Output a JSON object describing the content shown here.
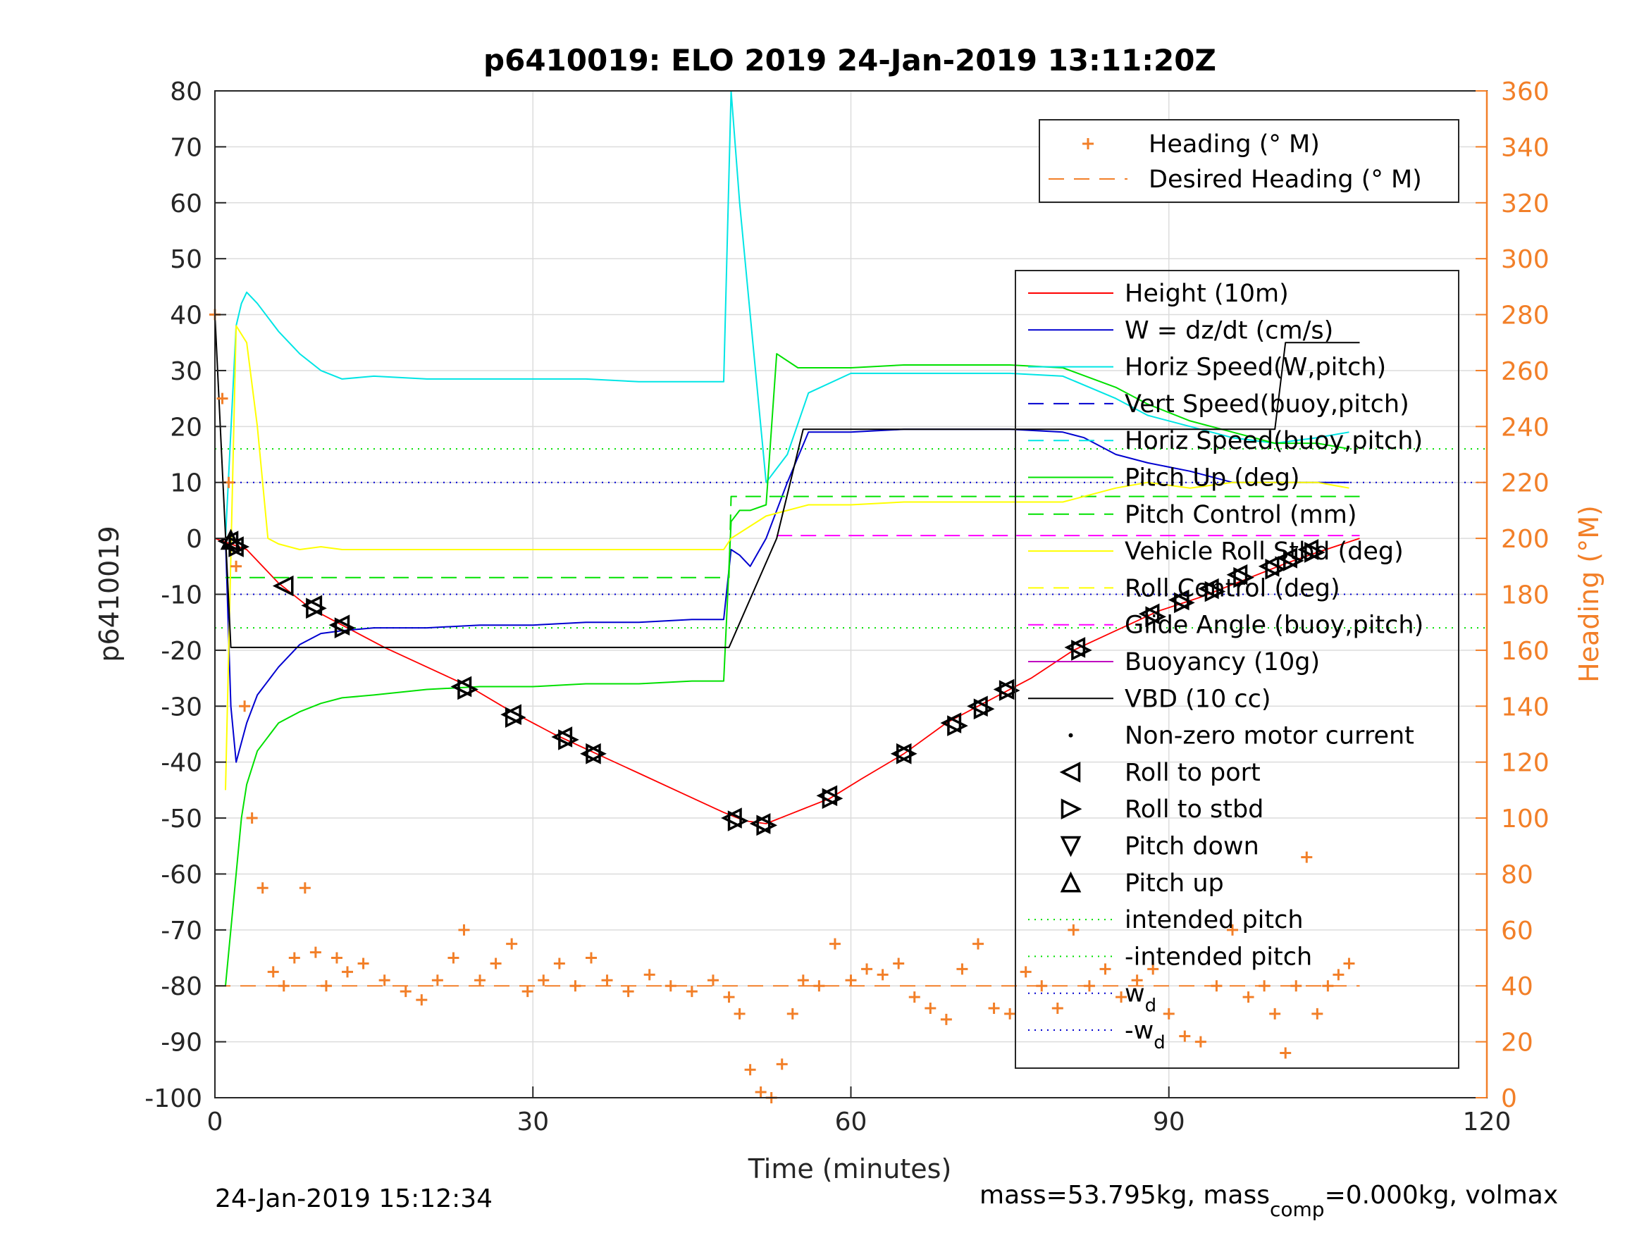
{
  "title": "p6410019: ELO 2019 24-Jan-2019 13:11:20Z",
  "footer_left": "24-Jan-2019 15:12:34",
  "footer_right": {
    "part1": "mass=53.795kg, mass",
    "sub": "comp",
    "part2": "=0.000kg, volmax"
  },
  "colors": {
    "heading": "#f27f28",
    "height": "#ff0000",
    "w": "#0000d0",
    "horiz_speed": "#00e5e5",
    "pitch": "#00e000",
    "roll": "#ffff00",
    "glide": "#ff00ff",
    "vbd": "#000000"
  },
  "chart_data": {
    "type": "line",
    "title": "p6410019: ELO 2019 24-Jan-2019 13:11:20Z",
    "xlabel": "Time (minutes)",
    "ylabel": "p6410019",
    "y2label": "Heading (°M)",
    "xlim": [
      0,
      120
    ],
    "ylim": [
      -100,
      80
    ],
    "y2lim": [
      0,
      360
    ],
    "x_ticks": [
      "0",
      "30",
      "60",
      "90",
      "120"
    ],
    "y_ticks": [
      "80",
      "70",
      "60",
      "50",
      "40",
      "30",
      "20",
      "10",
      "0",
      "-10",
      "-20",
      "-30",
      "-40",
      "-50",
      "-60",
      "-70",
      "-80",
      "-90",
      "-100"
    ],
    "y2_ticks": [
      "360",
      "340",
      "320",
      "300",
      "280",
      "260",
      "240",
      "220",
      "200",
      "180",
      "160",
      "140",
      "120",
      "100",
      "80",
      "60",
      "40",
      "20",
      "0"
    ],
    "grid": true,
    "legend_top": {
      "placement": "top-right",
      "entries": [
        {
          "label": "Heading (° M)",
          "style": "plus",
          "color": "#f27f28"
        },
        {
          "label": "Desired Heading (° M)",
          "style": "dash",
          "color": "#f27f28"
        }
      ]
    },
    "legend_main": {
      "placement": "right",
      "entries": [
        {
          "label": "Height (10m)",
          "style": "solid",
          "color": "#ff0000"
        },
        {
          "label": "W = dz/dt (cm/s)",
          "style": "solid",
          "color": "#0000d0"
        },
        {
          "label": "Horiz Speed(W,pitch)",
          "style": "solid",
          "color": "#00e5e5"
        },
        {
          "label": "Vert Speed(buoy,pitch)",
          "style": "dash",
          "color": "#0000d0"
        },
        {
          "label": "Horiz Speed(buoy,pitch)",
          "style": "dash",
          "color": "#00e5e5"
        },
        {
          "label": "Pitch Up (deg)",
          "style": "solid",
          "color": "#00e000"
        },
        {
          "label": "Pitch Control (mm)",
          "style": "dash",
          "color": "#00e000"
        },
        {
          "label": "Vehicle Roll Stbd (deg)",
          "style": "solid",
          "color": "#ffff00"
        },
        {
          "label": "Roll Control (deg)",
          "style": "dash",
          "color": "#ffff00"
        },
        {
          "label": "Glide Angle (buoy,pitch)",
          "style": "dash",
          "color": "#ff00ff"
        },
        {
          "label": "Buoyancy (10g)",
          "style": "solid",
          "color": "#c000c0"
        },
        {
          "label": "VBD (10 cc)",
          "style": "solid",
          "color": "#000000"
        },
        {
          "label": "Non-zero motor current",
          "style": "dot",
          "color": "#000000"
        },
        {
          "label": "Roll to port",
          "style": "tri-left",
          "color": "#000000"
        },
        {
          "label": "Roll to stbd",
          "style": "tri-right",
          "color": "#000000"
        },
        {
          "label": "Pitch down",
          "style": "tri-down",
          "color": "#000000"
        },
        {
          "label": "Pitch up",
          "style": "tri-up",
          "color": "#000000"
        },
        {
          "label": "intended pitch",
          "style": "dotted",
          "color": "#00e000"
        },
        {
          "label": "-intended pitch",
          "style": "dotted",
          "color": "#00e000"
        },
        {
          "label": "w",
          "sub": "d",
          "style": "dotted",
          "color": "#0000d0"
        },
        {
          "label": "-w",
          "sub": "d",
          "style": "dotted",
          "color": "#0000d0"
        }
      ]
    },
    "reference_lines": [
      {
        "name": "intended pitch",
        "y": 16,
        "color": "#00e000"
      },
      {
        "name": "-intended pitch",
        "y": -16,
        "color": "#00e000"
      },
      {
        "name": "wd",
        "y": 10,
        "color": "#0000d0"
      },
      {
        "name": "-wd",
        "y": -10,
        "color": "#0000d0"
      }
    ],
    "series": [
      {
        "key": "height",
        "x": [
          0,
          1.5,
          3,
          6,
          9,
          12,
          16,
          20,
          24,
          28,
          32,
          36,
          40,
          44,
          48,
          50,
          52,
          54,
          56,
          58,
          61,
          65,
          69,
          73,
          77,
          81,
          85,
          89,
          93,
          97,
          101,
          104,
          108
        ],
        "y": [
          0,
          -1,
          -2,
          -8,
          -12.5,
          -15.5,
          -19.5,
          -23,
          -26.5,
          -31,
          -35,
          -38.5,
          -42,
          -45.5,
          -49,
          -50.5,
          -51,
          -49.5,
          -48,
          -46.5,
          -43,
          -38.5,
          -33,
          -29,
          -25,
          -20,
          -16.5,
          -13,
          -10.5,
          -7.5,
          -4.5,
          -2.5,
          0
        ]
      },
      {
        "key": "w",
        "x": [
          1,
          1.5,
          2,
          3,
          4,
          6,
          8,
          10,
          12,
          15,
          20,
          25,
          30,
          35,
          40,
          45,
          48,
          48.7,
          49.5,
          50.5,
          52,
          54,
          56,
          60,
          65,
          70,
          75,
          80,
          82,
          85,
          88,
          92,
          96,
          100,
          104,
          107
        ],
        "y": [
          0,
          -30,
          -40,
          -33,
          -28,
          -23,
          -19,
          -17,
          -16.5,
          -16,
          -16,
          -15.5,
          -15.5,
          -15,
          -15,
          -14.5,
          -14.5,
          -2,
          -3,
          -5,
          0,
          10,
          19,
          19,
          19.5,
          19.5,
          19.5,
          19,
          18,
          15,
          13.5,
          12,
          10,
          10,
          10,
          10
        ]
      },
      {
        "key": "horiz_speed",
        "x": [
          1,
          2,
          2.5,
          3,
          4,
          6,
          8,
          10,
          12,
          15,
          20,
          25,
          30,
          35,
          40,
          45,
          48,
          48.7,
          49.5,
          50.5,
          52,
          54,
          56,
          60,
          65,
          70,
          75,
          80,
          85,
          88,
          92,
          96,
          100,
          104,
          107
        ],
        "y": [
          0,
          38,
          42,
          44,
          42,
          37,
          33,
          30,
          28.5,
          29,
          28.5,
          28.5,
          28.5,
          28.5,
          28,
          28,
          28,
          80,
          60,
          40,
          10,
          15,
          26,
          29.5,
          29.5,
          29.5,
          29.5,
          29,
          25,
          22,
          20,
          18,
          17,
          18,
          19
        ]
      },
      {
        "key": "pitch",
        "x": [
          1,
          2,
          2.5,
          3,
          4,
          6,
          8,
          10,
          12,
          15,
          20,
          25,
          30,
          35,
          40,
          45,
          48,
          48.7,
          49.5,
          50.5,
          52,
          53,
          55,
          60,
          65,
          70,
          75,
          80,
          85,
          88,
          92,
          96,
          100,
          104,
          107
        ],
        "y": [
          -80,
          -60,
          -50,
          -44,
          -38,
          -33,
          -31,
          -29.5,
          -28.5,
          -28,
          -27,
          -26.5,
          -26.5,
          -26,
          -26,
          -25.5,
          -25.5,
          3,
          5,
          5,
          6,
          33,
          30.5,
          30.5,
          31,
          31,
          31,
          30.5,
          27,
          24,
          21,
          19,
          17,
          17,
          16
        ]
      },
      {
        "key": "pitch_control",
        "x": [
          1,
          48.5,
          48.7,
          108
        ],
        "y": [
          -7,
          -7,
          7.5,
          7.5
        ]
      },
      {
        "key": "roll",
        "x": [
          1,
          2,
          3,
          4,
          5,
          6,
          8,
          10,
          12,
          15,
          20,
          25,
          30,
          35,
          40,
          45,
          48,
          48.7,
          52,
          56,
          60,
          65,
          70,
          75,
          80,
          85,
          88,
          92,
          96,
          100,
          104,
          107
        ],
        "y": [
          -45,
          38,
          35,
          20,
          0,
          -1,
          -2,
          -1.5,
          -2,
          -2,
          -2,
          -2,
          -2,
          -2,
          -2,
          -2,
          -2,
          0,
          4,
          6,
          6,
          6.5,
          6.5,
          6.5,
          6.5,
          9,
          10,
          9,
          10,
          10,
          10,
          9
        ]
      },
      {
        "key": "glide",
        "x": [
          53,
          108
        ],
        "y": [
          0.5,
          0.5
        ]
      },
      {
        "key": "vbd",
        "x": [
          0,
          1.5,
          3,
          48.5,
          53,
          55.5,
          85,
          100,
          101,
          108
        ],
        "y": [
          40,
          -19.5,
          -19.5,
          -19.5,
          0,
          19.5,
          19.5,
          19.5,
          35,
          35
        ]
      },
      {
        "key": "heading",
        "x": [
          0,
          0.7,
          1.3,
          2,
          2.8,
          3.5,
          4.5,
          5.5,
          6.5,
          7.5,
          8.5,
          9.5,
          10.5,
          11.5,
          12.5,
          14,
          16,
          18,
          19.5,
          21,
          22.5,
          23.5,
          25,
          26.5,
          28,
          29.5,
          31,
          32.5,
          34,
          35.5,
          37,
          39,
          41,
          43,
          45,
          47,
          48.5,
          49.5,
          50.5,
          51.5,
          52.5,
          53.5,
          54.5,
          55.5,
          57,
          58.5,
          60,
          61.5,
          63,
          64.5,
          66,
          67.5,
          69,
          70.5,
          72,
          73.5,
          75,
          76.5,
          78,
          79.5,
          81,
          82.5,
          84,
          85.5,
          87,
          88.5,
          90,
          91.5,
          93,
          94.5,
          96,
          97.5,
          99,
          100,
          101,
          102,
          103,
          104,
          105,
          106,
          107
        ],
        "y": [
          280,
          250,
          220,
          190,
          140,
          100,
          75,
          45,
          40,
          50,
          75,
          52,
          40,
          50,
          45,
          48,
          42,
          38,
          35,
          42,
          50,
          60,
          42,
          48,
          55,
          38,
          42,
          48,
          40,
          50,
          42,
          38,
          44,
          40,
          38,
          42,
          36,
          30,
          10,
          2,
          0,
          12,
          30,
          42,
          40,
          55,
          42,
          46,
          44,
          48,
          36,
          32,
          28,
          46,
          55,
          32,
          30,
          45,
          40,
          32,
          60,
          40,
          46,
          36,
          42,
          46,
          30,
          22,
          20,
          40,
          60,
          36,
          40,
          30,
          16,
          40,
          86,
          30,
          40,
          44,
          48
        ]
      },
      {
        "key": "desired_heading",
        "x": [
          0,
          108
        ],
        "y": [
          40,
          40
        ]
      }
    ],
    "markers": {
      "tri_left": {
        "x": [
          1.3,
          1.8,
          6.5,
          9.2,
          11.8,
          23.3,
          28,
          32.8,
          35.5,
          48.8,
          51.5,
          57.8,
          64.8,
          69.5,
          72,
          74.5,
          81.2,
          88.2,
          91,
          93.8,
          96.5,
          99.5,
          101.2,
          103.2
        ],
        "y": [
          -0.5,
          -1.5,
          -8.5,
          -12,
          -15.5,
          -26.5,
          -31.5,
          -35.5,
          -38.5,
          -50,
          -51,
          -46,
          -38.5,
          -33,
          -30,
          -27,
          -19.5,
          -13.5,
          -11,
          -9,
          -6.5,
          -5,
          -3.5,
          -2
        ]
      },
      "tri_right": {
        "x": [
          2.2,
          9.5,
          12.2,
          23.8,
          28.3,
          33.3,
          35.9,
          49.3,
          52,
          58.2,
          65.2,
          70,
          72.5,
          74.9,
          81.7,
          88.7,
          91.4,
          94.3,
          97,
          100,
          101.7,
          103.7
        ],
        "y": [
          -1.5,
          -12.5,
          -16,
          -27,
          -32,
          -36,
          -38.5,
          -50.5,
          -51.3,
          -46.5,
          -38.5,
          -33.5,
          -30.5,
          -27.2,
          -20,
          -14,
          -11.5,
          -9.5,
          -7,
          -5.5,
          -4,
          -2.5
        ]
      },
      "tri_up": {
        "x": [
          1.5
        ],
        "y": [
          -0.3
        ]
      }
    }
  }
}
